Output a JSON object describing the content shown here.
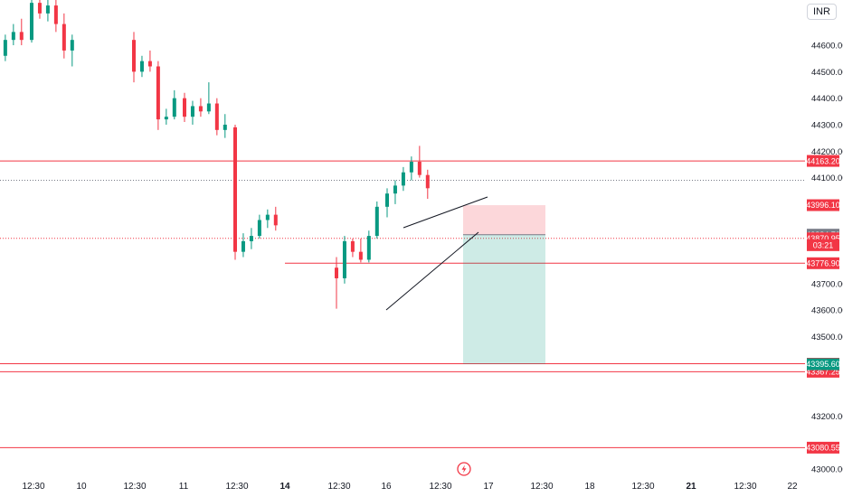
{
  "currency": "INR",
  "chart_data": {
    "type": "candlestick",
    "y_axis": {
      "ticks": [
        44600,
        44500,
        44400,
        44300,
        44200,
        44100,
        43700,
        43600,
        43500,
        43200,
        43000
      ],
      "tick_labels": [
        "44600.00",
        "44500.00",
        "44400.00",
        "44300.00",
        "44200.00",
        "44100.00",
        "43700.00",
        "43600.00",
        "43500.00",
        "43200.00",
        "43000.00"
      ],
      "range": [
        42975,
        44745
      ]
    },
    "x_axis": {
      "tick_labels": [
        "12:30",
        "10",
        "12:30",
        "11",
        "12:30",
        "14",
        "12:30",
        "16",
        "12:30",
        "17",
        "12:30",
        "18",
        "12:30",
        "21",
        "12:30",
        "22"
      ],
      "bold_labels": [
        "14",
        "21"
      ]
    },
    "horizontal_levels": [
      {
        "label": "44163.20",
        "value": 44163.2,
        "color": "#f23645",
        "style": "solid"
      },
      {
        "label": "43776.90",
        "value": 43776.9,
        "color": "#f23645",
        "style": "solid"
      },
      {
        "label": "43397.50",
        "value": 43397.5,
        "color": "#f23645",
        "style": "solid"
      },
      {
        "label": "43367.25",
        "value": 43367.25,
        "color": "#f23645",
        "style": "solid"
      },
      {
        "label": "43080.55",
        "value": 43080.55,
        "color": "#f23645",
        "style": "solid"
      },
      {
        "value": 44090,
        "color": "#787b86",
        "style": "dotted"
      }
    ],
    "price_labels": [
      {
        "text": "43996.10",
        "value": 43996.1,
        "bg": "#f23645"
      },
      {
        "text": "43884.70",
        "value": 43884.7,
        "bg": "#787b86"
      },
      {
        "text": "43870.95",
        "value": 43870.95,
        "bg": "#f23645"
      },
      {
        "text": "03:21",
        "value": 43845,
        "bg": "#f23645"
      },
      {
        "text": "43395.60",
        "value": 43395.6,
        "bg": "#089981"
      }
    ],
    "short_position": {
      "entry": 43884.7,
      "stop": 43996.1,
      "target": 43395.6
    },
    "wedge": {
      "upper": [
        [
          "15 10:00",
          43872
        ],
        [
          "16 14:30",
          44010
        ]
      ],
      "lower": [
        [
          "15 09:15",
          43605
        ],
        [
          "16 14:30",
          43875
        ]
      ]
    },
    "current_price": 43870.95,
    "candles": [
      [
        "09 09:15",
        44520,
        44700,
        44490,
        44680
      ],
      [
        "09 10:15",
        44680,
        44720,
        44560,
        44580
      ],
      [
        "09 11:15",
        44580,
        44650,
        44530,
        44560
      ],
      [
        "09 12:15",
        44560,
        44640,
        44540,
        44620
      ],
      [
        "09 13:15",
        44620,
        44680,
        44600,
        44650
      ],
      [
        "09 14:15",
        44650,
        44700,
        44600,
        44620
      ],
      [
        "10 09:15",
        44620,
        44790,
        44610,
        44760
      ],
      [
        "10 10:15",
        44760,
        44800,
        44700,
        44720
      ],
      [
        "10 11:15",
        44720,
        44790,
        44690,
        44750
      ],
      [
        "10 12:15",
        44750,
        44780,
        44650,
        44680
      ],
      [
        "10 13:15",
        44680,
        44720,
        44550,
        44580
      ],
      [
        "10 14:15",
        44580,
        44640,
        44520,
        44620
      ],
      [
        "11 09:15",
        44620,
        44650,
        44460,
        44500
      ],
      [
        "11 10:15",
        44500,
        44560,
        44480,
        44540
      ],
      [
        "11 11:15",
        44540,
        44580,
        44500,
        44520
      ],
      [
        "11 12:15",
        44520,
        44540,
        44280,
        44320
      ],
      [
        "11 13:15",
        44320,
        44360,
        44300,
        44330
      ],
      [
        "11 14:15",
        44330,
        44430,
        44320,
        44400
      ],
      [
        "12 09:15",
        44400,
        44420,
        44310,
        44330
      ],
      [
        "12 10:15",
        44330,
        44390,
        44300,
        44370
      ],
      [
        "12 11:15",
        44370,
        44400,
        44330,
        44350
      ],
      [
        "12 12:15",
        44350,
        44460,
        44340,
        44380
      ],
      [
        "12 13:15",
        44380,
        44400,
        44260,
        44280
      ],
      [
        "12 14:15",
        44280,
        44340,
        44250,
        44300
      ],
      [
        "14 09:15",
        44290,
        44300,
        43790,
        43820
      ],
      [
        "14 10:15",
        43820,
        43890,
        43800,
        43860
      ],
      [
        "14 11:15",
        43860,
        43910,
        43830,
        43880
      ],
      [
        "14 12:15",
        43880,
        43960,
        43870,
        43940
      ],
      [
        "14 13:15",
        43940,
        43980,
        43910,
        43960
      ],
      [
        "14 14:15",
        43960,
        43990,
        43900,
        43920
      ],
      [
        "15 09:15",
        43760,
        43800,
        43605,
        43720
      ],
      [
        "15 10:15",
        43720,
        43880,
        43700,
        43860
      ],
      [
        "15 11:15",
        43860,
        43870,
        43800,
        43820
      ],
      [
        "15 12:15",
        43820,
        43870,
        43780,
        43790
      ],
      [
        "15 13:15",
        43790,
        43900,
        43780,
        43880
      ],
      [
        "15 14:15",
        43880,
        44010,
        43870,
        43990
      ],
      [
        "16 09:15",
        43990,
        44060,
        43950,
        44040
      ],
      [
        "16 10:15",
        44040,
        44090,
        44000,
        44070
      ],
      [
        "16 11:15",
        44070,
        44140,
        44050,
        44120
      ],
      [
        "16 12:15",
        44120,
        44180,
        44090,
        44160
      ],
      [
        "16 13:15",
        44160,
        44220,
        44100,
        44110
      ],
      [
        "16 14:15",
        44110,
        44130,
        44020,
        44060
      ]
    ]
  }
}
